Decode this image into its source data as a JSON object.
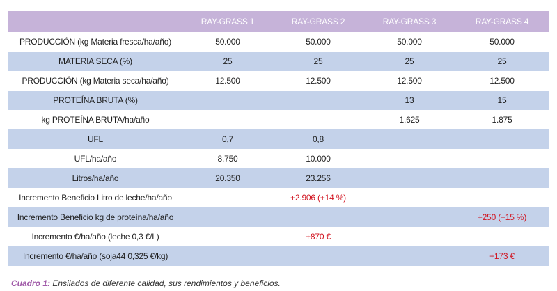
{
  "table": {
    "columns": [
      "",
      "RAY-GRASS 1",
      "RAY-GRASS 2",
      "RAY-GRASS 3",
      "RAY-GRASS 4"
    ],
    "rows": [
      {
        "label": "PRODUCCIÓN (kg Materia fresca/ha/año)",
        "values": [
          "50.000",
          "50.000",
          "50.000",
          "50.000"
        ]
      },
      {
        "label": "MATERIA SECA (%)",
        "values": [
          "25",
          "25",
          "25",
          "25"
        ]
      },
      {
        "label": "PRODUCCIÓN (kg Materia seca/ha/año)",
        "values": [
          "12.500",
          "12.500",
          "12.500",
          "12.500"
        ]
      },
      {
        "label": "PROTEÍNA BRUTA (%)",
        "values": [
          "",
          "",
          "13",
          "15"
        ]
      },
      {
        "label": "kg PROTEÍNA BRUTA/ha/año",
        "values": [
          "",
          "",
          "1.625",
          "1.875"
        ]
      },
      {
        "label": "UFL",
        "values": [
          "0,7",
          "0,8",
          "",
          ""
        ]
      },
      {
        "label": "UFL/ha/año",
        "values": [
          "8.750",
          "10.000",
          "",
          ""
        ]
      },
      {
        "label": "Litros/ha/año",
        "values": [
          "20.350",
          "23.256",
          "",
          ""
        ]
      },
      {
        "label": "Incremento Beneficio Litro de leche/ha/año",
        "values": [
          "",
          "+2.906 (+14 %)",
          "",
          ""
        ]
      },
      {
        "label": "Incremento Beneficio kg de proteína/ha/año",
        "values": [
          "",
          "",
          "",
          "+250 (+15 %)"
        ]
      },
      {
        "label": "Incremento €/ha/año (leche 0,3 €/L)",
        "values": [
          "",
          "+870 €",
          "",
          ""
        ]
      },
      {
        "label": "Incremento €/ha/año (soja44 0,325 €/kg)",
        "values": [
          "",
          "",
          "",
          "+173 €"
        ]
      }
    ]
  },
  "caption": {
    "label": "Cuadro 1:",
    "text": " Ensilados de diferente calidad, sus rendimientos y beneficios."
  },
  "colors": {
    "header_bg": "#c6b3d9",
    "shaded_bg": "#c4d2ea",
    "highlight_text": "#d1131f",
    "caption_label": "#a05aa8"
  }
}
